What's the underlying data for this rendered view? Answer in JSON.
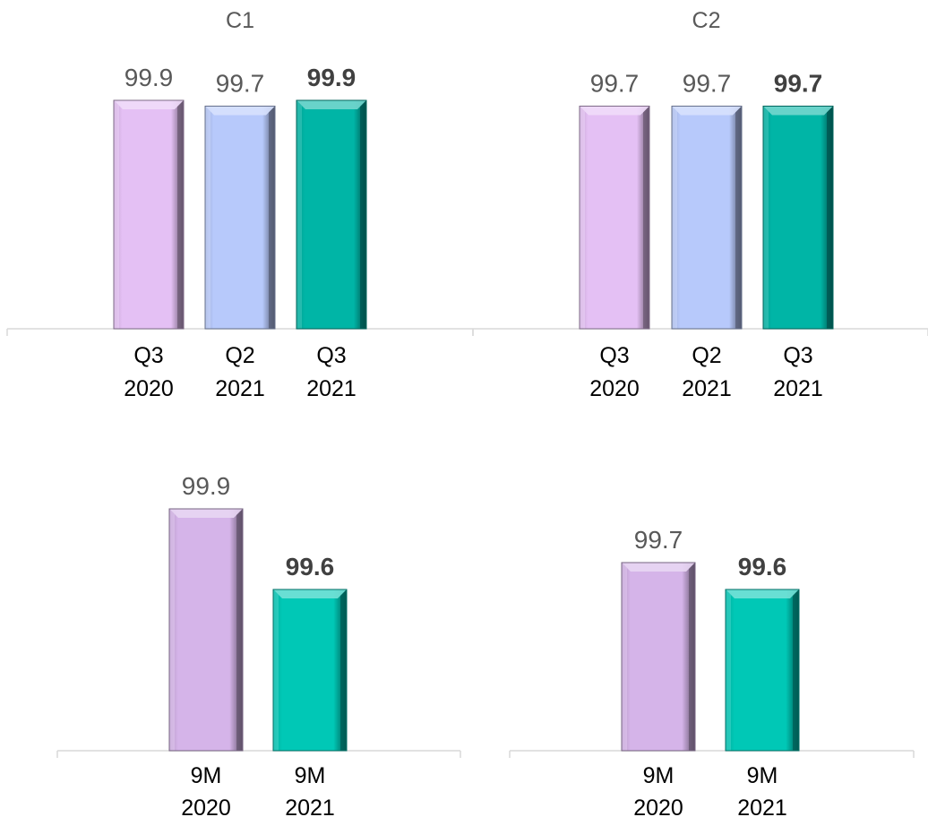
{
  "colors": {
    "lavender": "#e4c0f4",
    "light_blue": "#b7c9fb",
    "teal": "#00b5a6",
    "lavender_dark": "#d5b4e9",
    "teal_bright": "#00c8b6"
  },
  "chart_data": [
    {
      "type": "bar",
      "title": "C1",
      "categories": [
        "Q3 2020",
        "Q2 2021",
        "Q3 2021"
      ],
      "category_lines": [
        [
          "Q3",
          "2020"
        ],
        [
          "Q2",
          "2021"
        ],
        [
          "Q3",
          "2021"
        ]
      ],
      "values": [
        99.9,
        99.7,
        99.9
      ],
      "value_labels": [
        "99.9",
        "99.7",
        "99.9"
      ],
      "bold": [
        false,
        false,
        true
      ],
      "bar_colors": [
        "#e4c0f4",
        "#b7c9fb",
        "#00b5a6"
      ]
    },
    {
      "type": "bar",
      "title": "C2",
      "categories": [
        "Q3 2020",
        "Q2 2021",
        "Q3 2021"
      ],
      "category_lines": [
        [
          "Q3",
          "2020"
        ],
        [
          "Q2",
          "2021"
        ],
        [
          "Q3",
          "2021"
        ]
      ],
      "values": [
        99.7,
        99.7,
        99.7
      ],
      "value_labels": [
        "99.7",
        "99.7",
        "99.7"
      ],
      "bold": [
        false,
        false,
        true
      ],
      "bar_colors": [
        "#e4c0f4",
        "#b7c9fb",
        "#00b5a6"
      ]
    },
    {
      "type": "bar",
      "title": "",
      "categories": [
        "9M 2020",
        "9M 2021"
      ],
      "category_lines": [
        [
          "9M",
          "2020"
        ],
        [
          "9M",
          "2021"
        ]
      ],
      "values": [
        99.9,
        99.6
      ],
      "value_labels": [
        "99.9",
        "99.6"
      ],
      "bold": [
        false,
        true
      ],
      "bar_colors": [
        "#d5b4e9",
        "#00c8b6"
      ]
    },
    {
      "type": "bar",
      "title": "",
      "categories": [
        "9M 2020",
        "9M 2021"
      ],
      "category_lines": [
        [
          "9M",
          "2020"
        ],
        [
          "9M",
          "2021"
        ]
      ],
      "values": [
        99.7,
        99.6
      ],
      "value_labels": [
        "99.7",
        "99.6"
      ],
      "bold": [
        false,
        true
      ],
      "bar_colors": [
        "#d5b4e9",
        "#00c8b6"
      ]
    }
  ]
}
